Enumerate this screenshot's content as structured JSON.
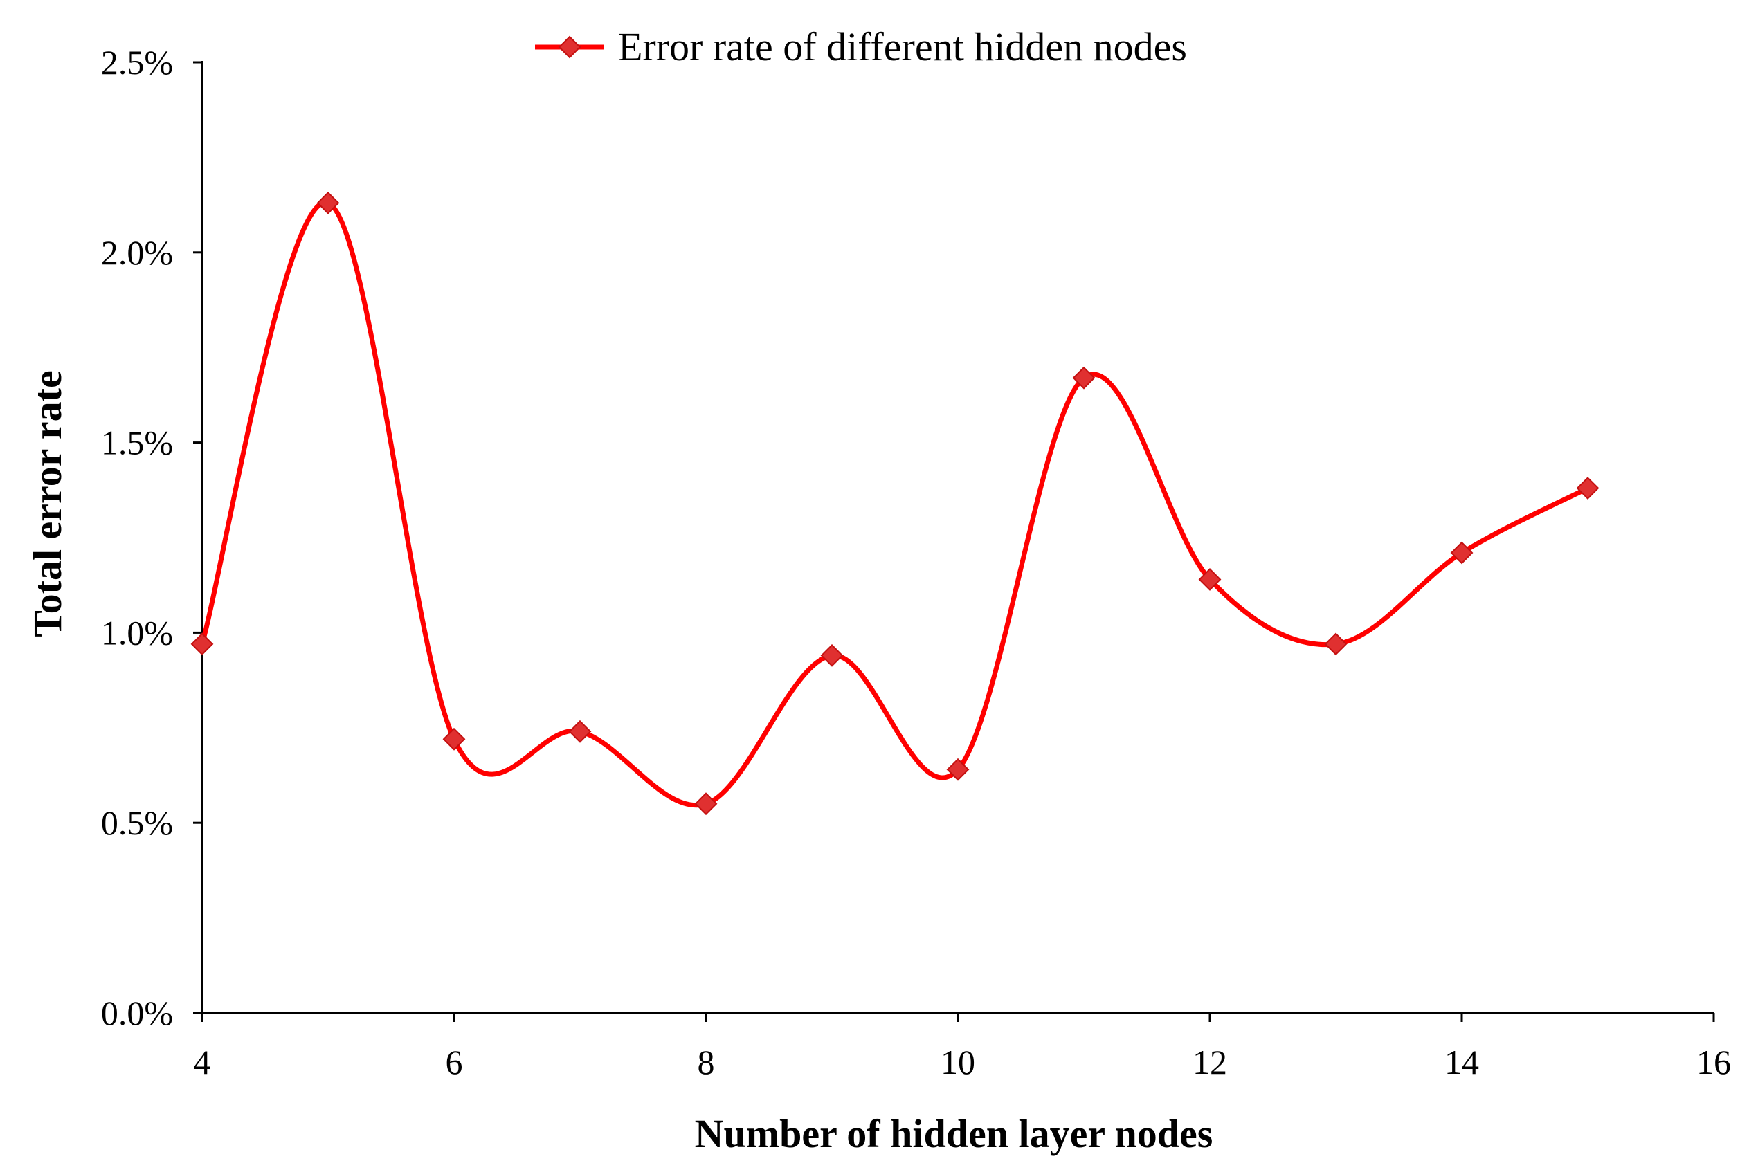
{
  "chart_data": {
    "type": "line",
    "smooth": true,
    "title": "",
    "xlabel": "Number of hidden layer nodes",
    "ylabel": "Total error rate",
    "xlim": [
      4,
      16
    ],
    "ylim": [
      0,
      0.025
    ],
    "x_ticks": [
      4,
      6,
      8,
      10,
      12,
      14,
      16
    ],
    "x_tick_labels": [
      "4",
      "6",
      "8",
      "10",
      "12",
      "14",
      "16"
    ],
    "y_ticks": [
      0,
      0.005,
      0.01,
      0.015,
      0.02,
      0.025
    ],
    "y_tick_labels": [
      "0.0%",
      "0.5%",
      "1.0%",
      "1.5%",
      "2.0%",
      "2.5%"
    ],
    "grid": false,
    "legend_position": "top-center",
    "series": [
      {
        "name": "Error rate of different hidden nodes",
        "color": "#ff0000",
        "marker": "diamond",
        "marker_color": "#e03030",
        "x": [
          4,
          5,
          6,
          7,
          8,
          9,
          10,
          11,
          12,
          13,
          14,
          15
        ],
        "values": [
          0.0097,
          0.0213,
          0.0072,
          0.0074,
          0.0055,
          0.0094,
          0.0064,
          0.0167,
          0.0114,
          0.0097,
          0.0121,
          0.0138
        ]
      }
    ]
  }
}
